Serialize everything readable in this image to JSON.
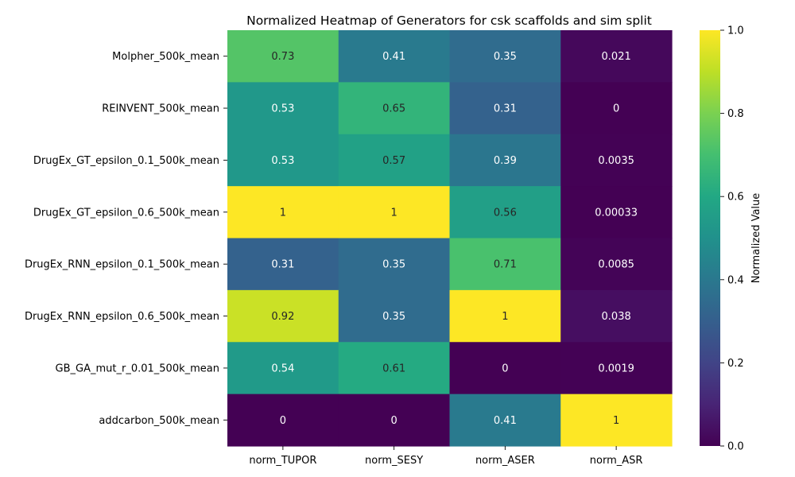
{
  "chart_data": {
    "type": "heatmap",
    "title": "Normalized Heatmap of Generators for csk scaffolds and sim split",
    "columns": [
      "norm_TUPOR",
      "norm_SESY",
      "norm_ASER",
      "norm_ASR"
    ],
    "rows": [
      "Molpher_500k_mean",
      "REINVENT_500k_mean",
      "DrugEx_GT_epsilon_0.1_500k_mean",
      "DrugEx_GT_epsilon_0.6_500k_mean",
      "DrugEx_RNN_epsilon_0.1_500k_mean",
      "DrugEx_RNN_epsilon_0.6_500k_mean",
      "GB_GA_mut_r_0.01_500k_mean",
      "addcarbon_500k_mean"
    ],
    "values": [
      [
        0.73,
        0.41,
        0.35,
        0.021
      ],
      [
        0.53,
        0.65,
        0.31,
        0
      ],
      [
        0.53,
        0.57,
        0.39,
        0.0035
      ],
      [
        1,
        1,
        0.56,
        0.00033
      ],
      [
        0.31,
        0.35,
        0.71,
        0.0085
      ],
      [
        0.92,
        0.35,
        1,
        0.038
      ],
      [
        0.54,
        0.61,
        0,
        0.0019
      ],
      [
        0,
        0,
        0.41,
        1
      ]
    ],
    "labels": [
      [
        "0.73",
        "0.41",
        "0.35",
        "0.021"
      ],
      [
        "0.53",
        "0.65",
        "0.31",
        "0"
      ],
      [
        "0.53",
        "0.57",
        "0.39",
        "0.0035"
      ],
      [
        "1",
        "1",
        "0.56",
        "0.00033"
      ],
      [
        "0.31",
        "0.35",
        "0.71",
        "0.0085"
      ],
      [
        "0.92",
        "0.35",
        "1",
        "0.038"
      ],
      [
        "0.54",
        "0.61",
        "0",
        "0.0019"
      ],
      [
        "0",
        "0",
        "0.41",
        "1"
      ]
    ],
    "colormap": "viridis",
    "vmin": 0,
    "vmax": 1,
    "colorbar": {
      "label": "Normalized Value",
      "ticks": [
        0.0,
        0.2,
        0.4,
        0.6,
        0.8,
        1.0
      ],
      "tick_labels": [
        "0.0",
        "0.2",
        "0.4",
        "0.6",
        "0.8",
        "1.0"
      ],
      "placement": "right"
    },
    "grid": false
  }
}
